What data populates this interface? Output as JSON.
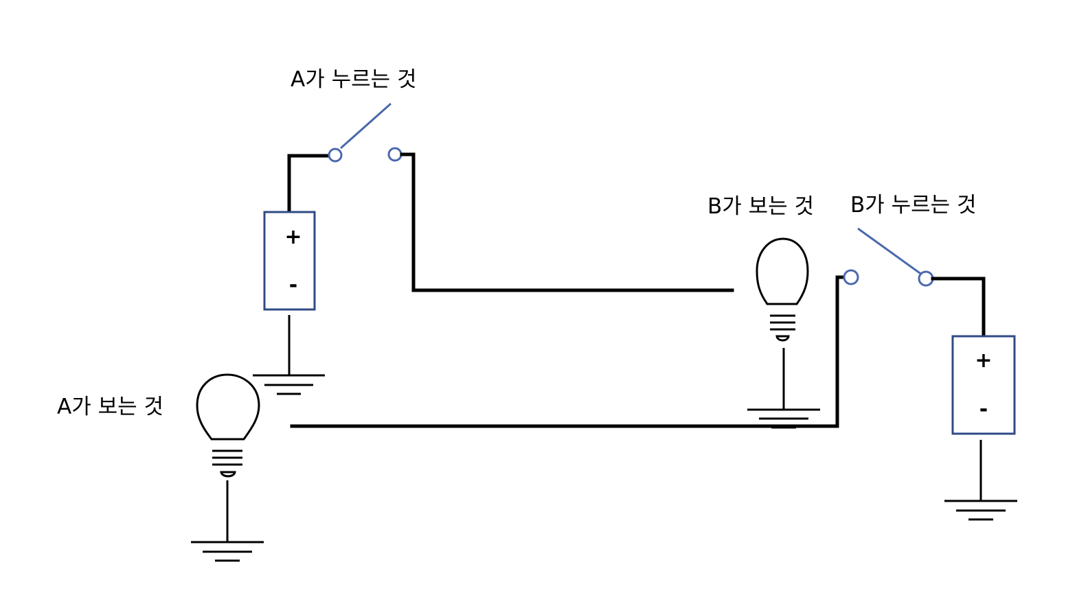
{
  "labels": {
    "a_press": "A가 누르는 것",
    "a_see": "A가 보는 것",
    "b_see": "B가 보는 것",
    "b_press": "B가 누르는 것"
  },
  "battery_a": {
    "plus": "+",
    "minus": "-"
  },
  "battery_b": {
    "plus": "+",
    "minus": "-"
  },
  "colors": {
    "wire": "#000000",
    "switch": "#4a68ad",
    "battery_border": "#2f4a85"
  }
}
